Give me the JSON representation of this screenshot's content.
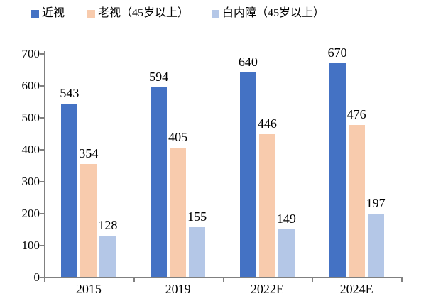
{
  "chart_data": {
    "type": "bar",
    "title": "",
    "xlabel": "",
    "ylabel": "",
    "categories": [
      "2015",
      "2019",
      "2022E",
      "2024E"
    ],
    "series": [
      {
        "name": "近视",
        "color": "#4472C4",
        "values": [
          543,
          594,
          640,
          670
        ]
      },
      {
        "name": "老视（45岁以上）",
        "color": "#F8CBAD",
        "values": [
          354,
          405,
          446,
          476
        ]
      },
      {
        "name": "白内障（45岁以上）",
        "color": "#B4C7E7",
        "values": [
          128,
          155,
          149,
          197
        ]
      }
    ],
    "ylim": [
      0,
      700
    ],
    "ytick_step": 100,
    "yticks": [
      "0",
      "100",
      "200",
      "300",
      "400",
      "500",
      "600",
      "700"
    ],
    "grid": false,
    "legend_position": "top",
    "axis_color": "#808080",
    "text_color": "#000000",
    "data_labels": true
  }
}
